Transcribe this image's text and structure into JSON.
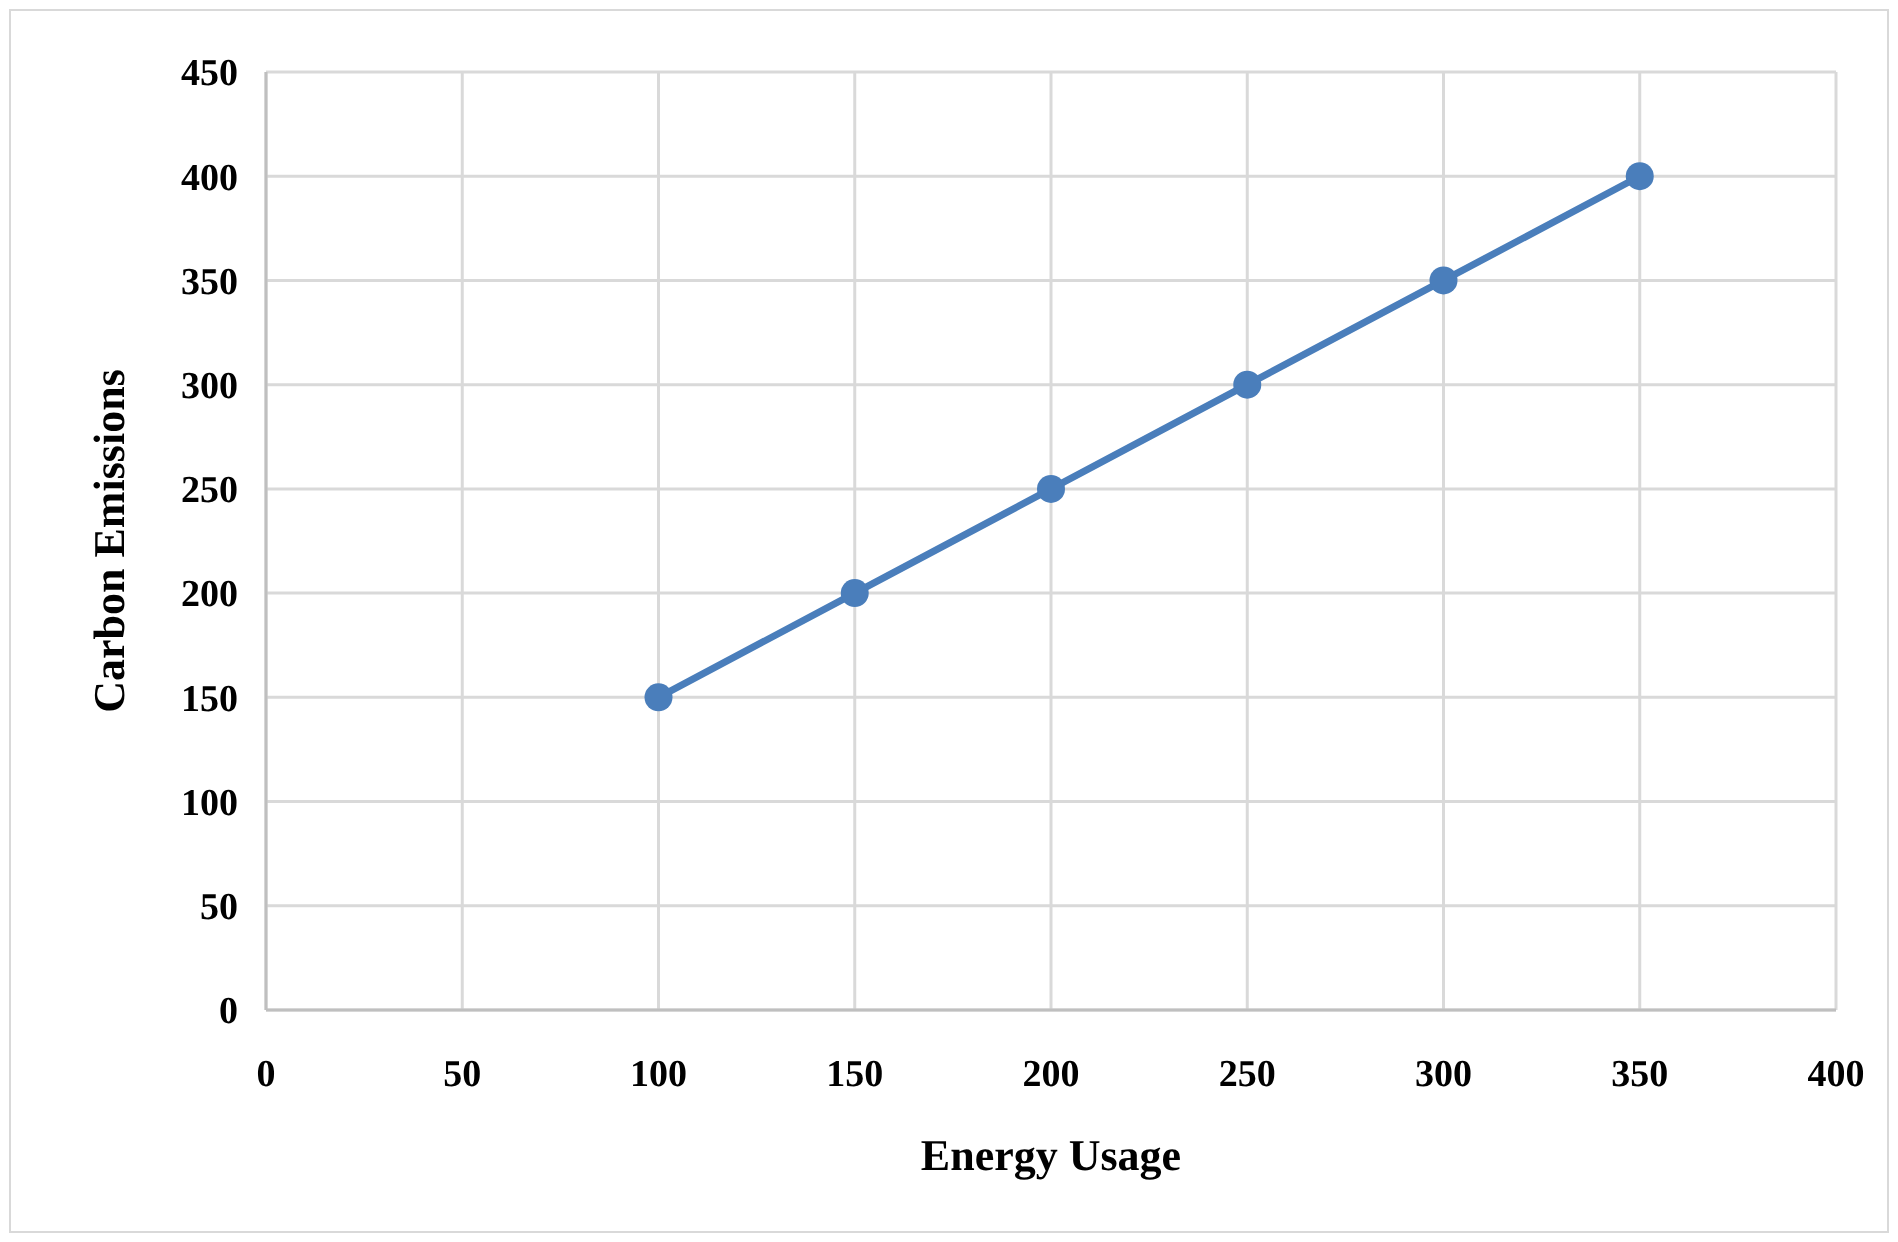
{
  "chart_data": {
    "type": "line",
    "xlabel": "Energy Usage",
    "ylabel": "Carbon Emissions",
    "x": [
      100,
      150,
      200,
      250,
      300,
      350
    ],
    "series": [
      {
        "color": "#4a7ebb",
        "values": [
          150,
          200,
          250,
          300,
          350,
          400
        ]
      }
    ],
    "xlim": [
      0,
      400
    ],
    "xticks": [
      0,
      50,
      100,
      150,
      200,
      250,
      300,
      350,
      400
    ],
    "ylim": [
      0,
      450
    ],
    "yticks": [
      0,
      50,
      100,
      150,
      200,
      250,
      300,
      350,
      400,
      450
    ],
    "grid": true,
    "marker": "circle",
    "line_style": "solid"
  }
}
